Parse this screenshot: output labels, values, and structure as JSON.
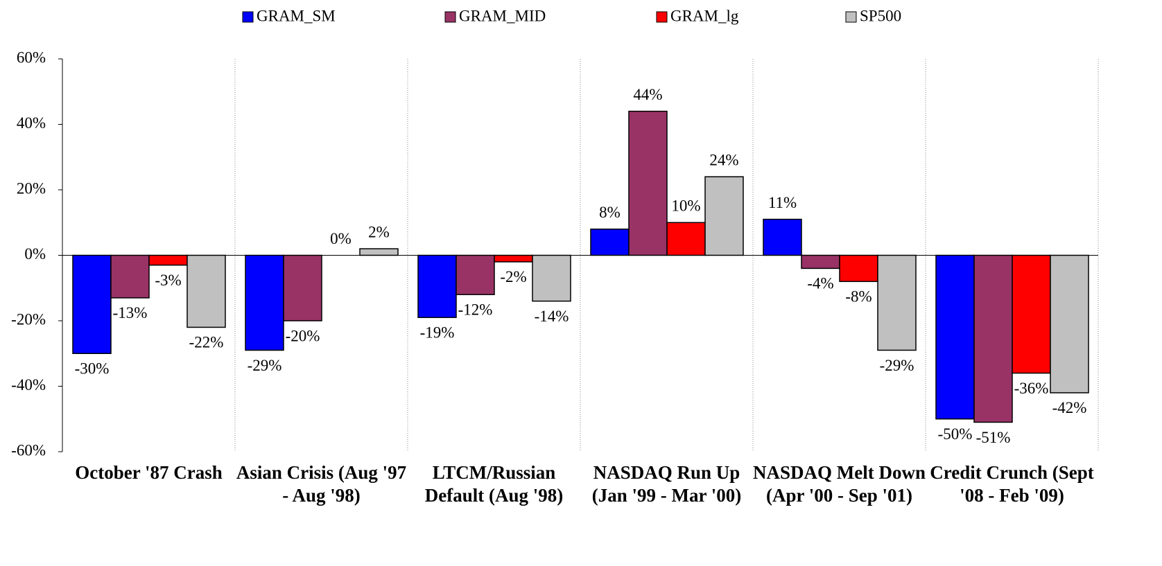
{
  "chart_data": {
    "type": "bar",
    "categories": [
      "October '87 Crash",
      "Asian Crisis (Aug '97 - Aug '98)",
      "LTCM/Russian Default (Aug '98)",
      "NASDAQ Run Up (Jan '99 - Mar '00)",
      "NASDAQ Melt Down (Apr '00 - Sep '01)",
      "Credit Crunch (Sept '08 - Feb '09)"
    ],
    "series": [
      {
        "name": "GRAM_SM",
        "color": "#0000ff",
        "values": [
          -30,
          -29,
          -19,
          8,
          11,
          -50
        ],
        "value_labels": [
          "-30%",
          "-29%",
          "-19%",
          "8%",
          "11%",
          "-50%"
        ]
      },
      {
        "name": "GRAM_MID",
        "color": "#993366",
        "values": [
          -13,
          -20,
          -12,
          44,
          -4,
          -51
        ],
        "value_labels": [
          "-13%",
          "-20%",
          "-12%",
          "44%",
          "-4%",
          "-51%"
        ]
      },
      {
        "name": "GRAM_lg",
        "color": "#ff0000",
        "values": [
          -3,
          0,
          -2,
          10,
          -8,
          -36
        ],
        "value_labels": [
          "-3%",
          "0%",
          "-2%",
          "10%",
          "-8%",
          "-36%"
        ]
      },
      {
        "name": "SP500",
        "color": "#c0c0c0",
        "values": [
          -22,
          2,
          -14,
          24,
          -29,
          -42
        ],
        "value_labels": [
          "-22%",
          "2%",
          "-14%",
          "24%",
          "-29%",
          "-42%"
        ]
      }
    ],
    "ylim": [
      -60,
      60
    ],
    "yticks": [
      {
        "value": -60,
        "label": "-60%"
      },
      {
        "value": -40,
        "label": "-40%"
      },
      {
        "value": -20,
        "label": "-20%"
      },
      {
        "value": 0,
        "label": "0%"
      },
      {
        "value": 20,
        "label": "20%"
      },
      {
        "value": 40,
        "label": "40%"
      },
      {
        "value": 60,
        "label": "60%"
      }
    ],
    "legend": "top"
  }
}
